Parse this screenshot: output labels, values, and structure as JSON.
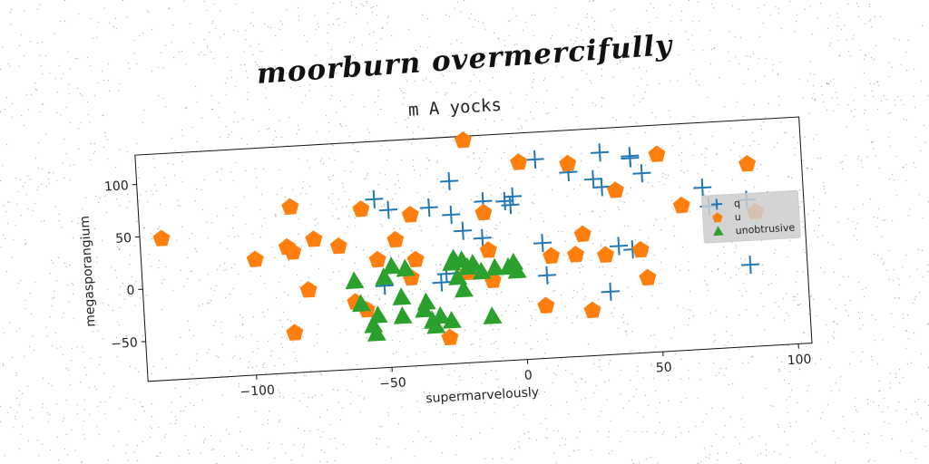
{
  "header": {
    "title": "moorburn overmercifully"
  },
  "chart_data": {
    "type": "scatter",
    "title": "m A yocks",
    "xlabel": "supermarvelously",
    "ylabel": "megasporangium",
    "xlim": [
      -140,
      105
    ],
    "ylim": [
      -88,
      128
    ],
    "xticks": [
      -100,
      -50,
      0,
      50,
      100
    ],
    "yticks": [
      -50,
      0,
      50,
      100
    ],
    "xtick_labels": [
      "−100",
      "−50",
      "0",
      "50",
      "100"
    ],
    "ytick_labels": [
      "−50",
      "0",
      "50",
      "100"
    ],
    "grid": false,
    "legend_position": "right",
    "series": [
      {
        "name": "q",
        "marker": "plus",
        "color": "#1f77b4",
        "points": [
          [
            -53,
            73
          ],
          [
            -48,
            62
          ],
          [
            -33,
            62
          ],
          [
            -25,
            86
          ],
          [
            -25,
            54
          ],
          [
            -21,
            38
          ],
          [
            -13,
            65
          ],
          [
            -14,
            30
          ],
          [
            -5,
            64
          ],
          [
            -3,
            60
          ],
          [
            -2,
            68
          ],
          [
            7,
            102
          ],
          [
            8,
            22
          ],
          [
            9,
            -9
          ],
          [
            19,
            88
          ],
          [
            28,
            80
          ],
          [
            31,
            105
          ],
          [
            31,
            72
          ],
          [
            42,
            100
          ],
          [
            42,
            98
          ],
          [
            46,
            83
          ],
          [
            36,
            15
          ],
          [
            41,
            11
          ],
          [
            32,
            -28
          ],
          [
            68,
            66
          ],
          [
            70,
            48
          ],
          [
            84,
            52
          ],
          [
            84,
            -10
          ],
          [
            -51,
            -10
          ],
          [
            -30,
            -10
          ],
          [
            -28,
            -2
          ]
        ]
      },
      {
        "name": "u",
        "marker": "pentagon",
        "color": "#ff7f0e",
        "points": [
          [
            -132,
            47
          ],
          [
            -98,
            22
          ],
          [
            -86,
            32
          ],
          [
            -85,
            -50
          ],
          [
            -84,
            27
          ],
          [
            -84,
            70
          ],
          [
            -79,
            -10
          ],
          [
            -76,
            38
          ],
          [
            -67,
            30
          ],
          [
            -62,
            -24
          ],
          [
            -58,
            -32
          ],
          [
            -58,
            64
          ],
          [
            -53,
            15
          ],
          [
            -46,
            33
          ],
          [
            -41,
            -4
          ],
          [
            -40,
            56
          ],
          [
            -39,
            13
          ],
          [
            -28,
            -63
          ],
          [
            -20,
            -2
          ],
          [
            -19,
            124
          ],
          [
            -13,
            54
          ],
          [
            -12,
            18
          ],
          [
            -11,
            -11
          ],
          [
            1,
            100
          ],
          [
            8,
            -38
          ],
          [
            11,
            9
          ],
          [
            19,
            96
          ],
          [
            20,
            9
          ],
          [
            25,
            -45
          ],
          [
            23,
            28
          ],
          [
            31,
            7
          ],
          [
            36,
            68
          ],
          [
            44,
            10
          ],
          [
            46,
            -17
          ],
          [
            52,
            100
          ],
          [
            60,
            50
          ],
          [
            85,
            86
          ],
          [
            87,
            40
          ]
        ]
      },
      {
        "name": "unobtrusive",
        "marker": "triangle",
        "color": "#2ca02c",
        "points": [
          [
            -62,
            -4
          ],
          [
            -60,
            -26
          ],
          [
            -56,
            -47
          ],
          [
            -55,
            -55
          ],
          [
            -54,
            -38
          ],
          [
            -51,
            -2
          ],
          [
            -48,
            8
          ],
          [
            -45,
            -22
          ],
          [
            -45,
            -40
          ],
          [
            -43,
            5
          ],
          [
            -37,
            -35
          ],
          [
            -36,
            -28
          ],
          [
            -34,
            -46
          ],
          [
            -33,
            -51
          ],
          [
            -31,
            -42
          ],
          [
            -27,
            -47
          ],
          [
            -26,
            8
          ],
          [
            -25,
            12
          ],
          [
            -24,
            -6
          ],
          [
            -22,
            -18
          ],
          [
            -22,
            10
          ],
          [
            -20,
            3
          ],
          [
            -18,
            6
          ],
          [
            -15,
            -2
          ],
          [
            -12,
            -45
          ],
          [
            -10,
            1
          ],
          [
            -5,
            1
          ],
          [
            -3,
            5
          ],
          [
            -2,
            -3
          ]
        ]
      }
    ]
  }
}
